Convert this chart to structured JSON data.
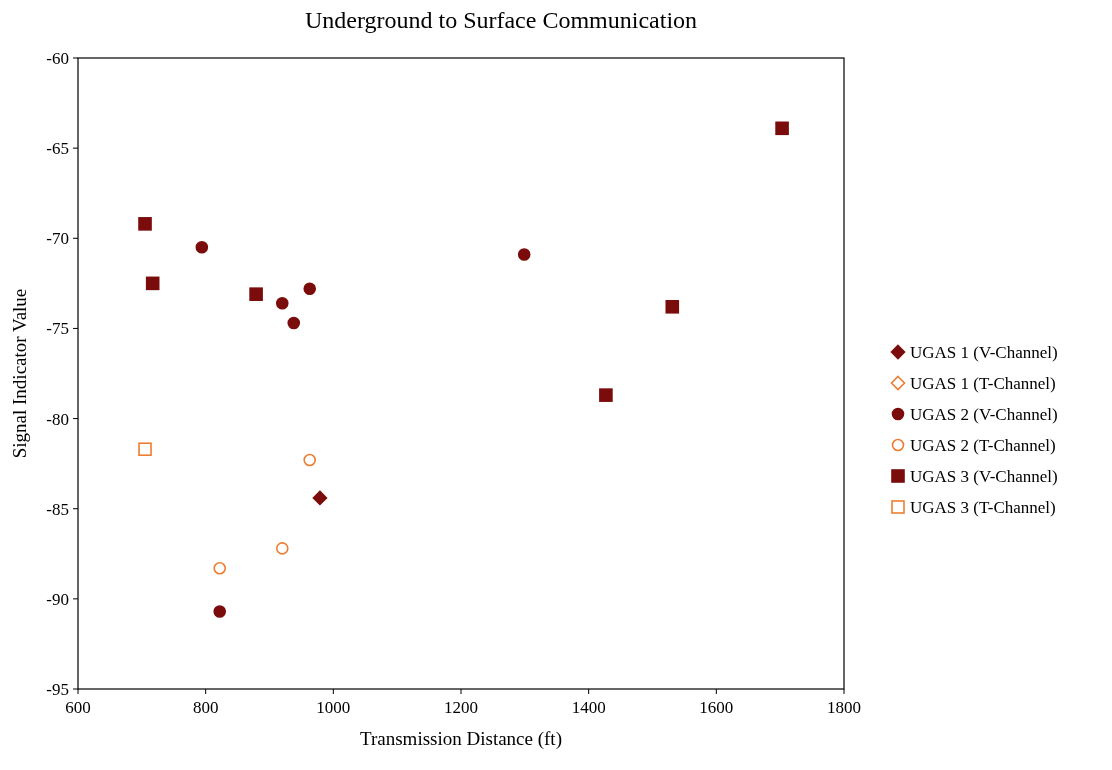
{
  "chart_data": {
    "type": "scatter",
    "title": "Underground to Surface Communication",
    "xlabel": "Transmission Distance (ft)",
    "ylabel": "Signal Indicator Value",
    "xlim": [
      600,
      1800
    ],
    "xticks": [
      600,
      800,
      1000,
      1200,
      1400,
      1600,
      1800
    ],
    "ylim": [
      -95,
      -60
    ],
    "yticks": [
      -95,
      -90,
      -85,
      -80,
      -75,
      -70,
      -65,
      -60
    ],
    "grid": false,
    "legend": "right",
    "series": [
      {
        "name": "UGAS 1 (V-Channel)",
        "color": "#7b0c0c",
        "marker": "diamond",
        "x": [
          979
        ],
        "values": [
          -84.4
        ]
      },
      {
        "name": "UGAS 1 (T-Channel)",
        "color": "#ed7d31",
        "marker": "diamond"
      },
      {
        "name": "UGAS 2 (V-Channel)",
        "color": "#7b0c0c",
        "marker": "circle",
        "x": [
          794,
          920,
          938,
          963,
          1299,
          822
        ],
        "values": [
          -70.5,
          -73.6,
          -74.7,
          -72.8,
          -70.9,
          -90.7
        ]
      },
      {
        "name": "UGAS 2 (T-Channel)",
        "color": "#ed7d31",
        "marker": "circle",
        "x": [
          963,
          920,
          822
        ],
        "values": [
          -82.3,
          -87.2,
          -88.3
        ]
      },
      {
        "name": "UGAS 3 (V-Channel)",
        "color": "#7b0c0c",
        "marker": "square",
        "x": [
          705,
          717,
          879,
          1427,
          1531,
          1703
        ],
        "values": [
          -69.2,
          -72.5,
          -73.1,
          -78.7,
          -73.8,
          -63.9
        ]
      },
      {
        "name": "UGAS 3 (T-Channel)",
        "color": "#ed7d31",
        "marker": "square",
        "x": [
          705
        ],
        "values": [
          -81.7
        ]
      }
    ]
  }
}
